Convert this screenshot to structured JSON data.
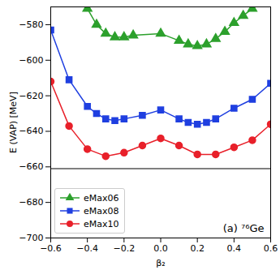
{
  "chart_data": {
    "type": "line",
    "x_label": "β₂",
    "y_label": "E (VAP) [MeV]",
    "annotation": "(a) ⁷⁶Ge",
    "xlim": [
      -0.6,
      0.6
    ],
    "ylim": [
      -700,
      -570
    ],
    "xticks": [
      {
        "value": -0.6,
        "label": "−0.6"
      },
      {
        "value": -0.4,
        "label": "−0.4"
      },
      {
        "value": -0.2,
        "label": "−0.2"
      },
      {
        "value": 0,
        "label": "0.0"
      },
      {
        "value": 0.2,
        "label": "0.2"
      },
      {
        "value": 0.4,
        "label": "0.4"
      },
      {
        "value": 0.6,
        "label": "0.6"
      }
    ],
    "yticks": [
      {
        "value": -700,
        "label": "−700"
      },
      {
        "value": -680,
        "label": "−680"
      },
      {
        "value": -660,
        "label": "−660"
      },
      {
        "value": -640,
        "label": "−640"
      },
      {
        "value": -620,
        "label": "−620"
      },
      {
        "value": -600,
        "label": "−600"
      },
      {
        "value": -580,
        "label": "−580"
      }
    ],
    "hline": -661,
    "grid": false,
    "legend": "lower left",
    "series": [
      {
        "name": "eMax06",
        "color": "#2ca02c",
        "marker": "triangle",
        "x": [
          -0.4,
          -0.35,
          -0.3,
          -0.25,
          -0.2,
          -0.15,
          0,
          0.1,
          0.15,
          0.2,
          0.25,
          0.3,
          0.35,
          0.4,
          0.45,
          0.5
        ],
        "values": [
          -571,
          -580,
          -585,
          -587,
          -587,
          -586,
          -585,
          -589,
          -591,
          -592,
          -591,
          -588,
          -584,
          -579,
          -575,
          -571
        ]
      },
      {
        "name": "eMax08",
        "color": "#1f3fe0",
        "marker": "square",
        "x": [
          -0.6,
          -0.5,
          -0.4,
          -0.35,
          -0.3,
          -0.25,
          -0.2,
          -0.1,
          0,
          0.1,
          0.15,
          0.2,
          0.25,
          0.3,
          0.4,
          0.5,
          0.6
        ],
        "values": [
          -583,
          -611,
          -626,
          -630,
          -633,
          -634,
          -633,
          -631,
          -628,
          -633,
          -635,
          -636,
          -635,
          -633,
          -627,
          -622,
          -613
        ]
      },
      {
        "name": "eMax10",
        "color": "#e8202a",
        "marker": "circle",
        "x": [
          -0.6,
          -0.5,
          -0.4,
          -0.3,
          -0.2,
          -0.1,
          0,
          0.1,
          0.2,
          0.3,
          0.4,
          0.5,
          0.6
        ],
        "values": [
          -612,
          -637,
          -650,
          -654,
          -652,
          -648,
          -644,
          -648,
          -653,
          -653,
          -649,
          -645,
          -636
        ]
      }
    ]
  }
}
